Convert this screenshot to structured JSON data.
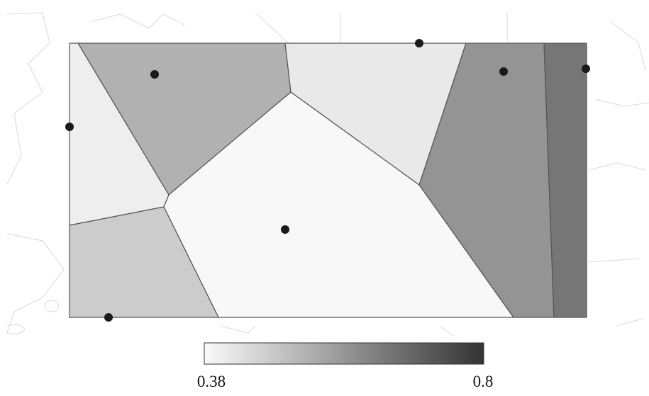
{
  "map": {
    "cells": [
      {
        "value": 0.41
      },
      {
        "value": 0.55
      },
      {
        "value": 0.42
      },
      {
        "value": 0.386
      },
      {
        "value": 0.49
      },
      {
        "value": 0.62
      },
      {
        "value": 0.69
      }
    ],
    "colorbar": {
      "min": 0.38,
      "max": 0.8,
      "low_color": "#fafafa",
      "high_color": "#333333"
    }
  }
}
